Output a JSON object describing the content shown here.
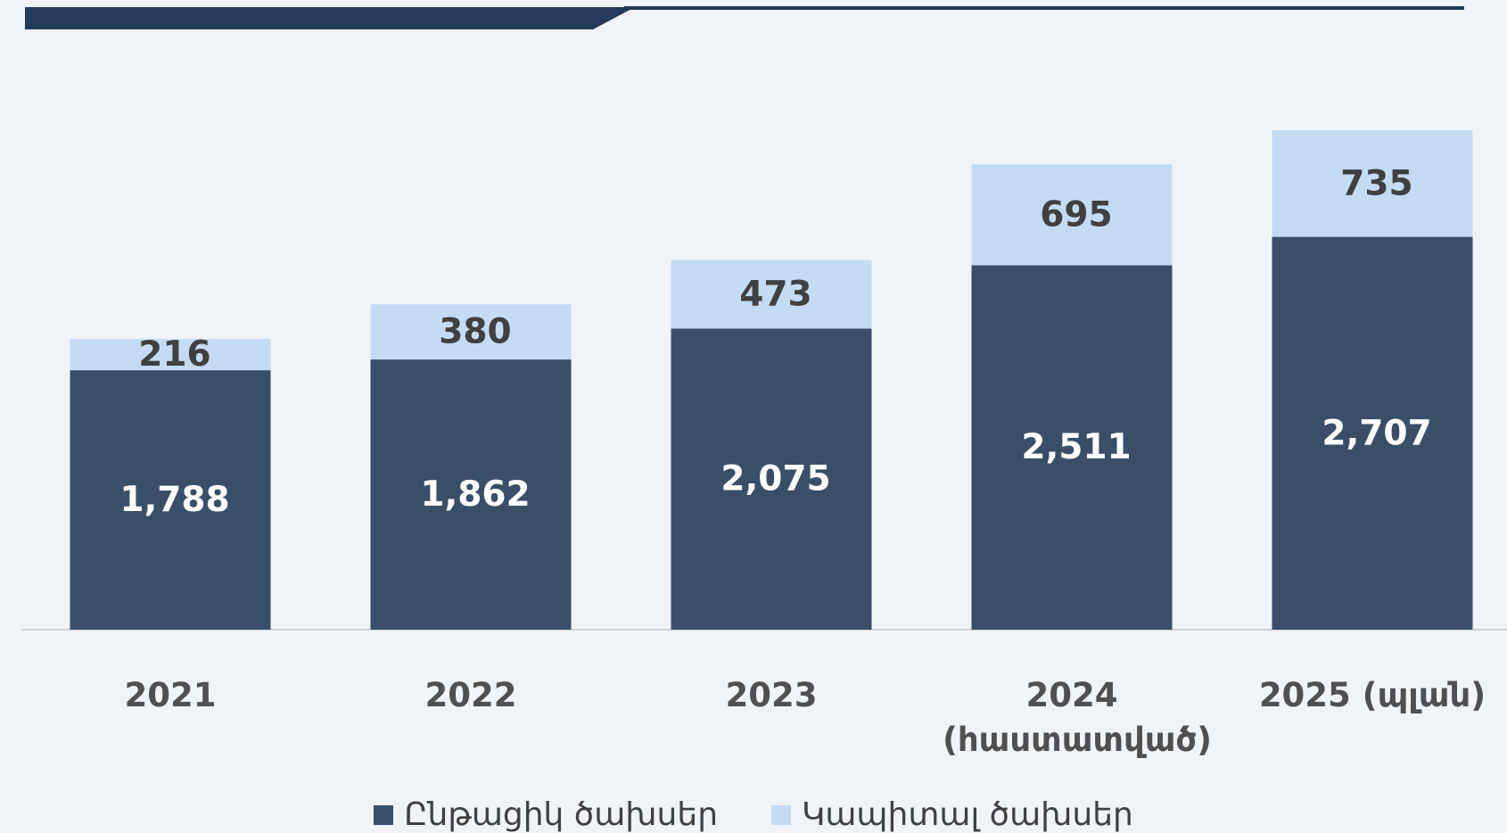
{
  "chart_data": {
    "type": "stacked_bar",
    "categories": [
      "2021",
      "2022",
      "2023",
      "2024 (հաստատված)",
      "2025 (պլան)"
    ],
    "series": [
      {
        "name": "Ընթացիկ ծախսեր",
        "color": "#3a4e67",
        "values": [
          1788,
          1862,
          2075,
          2511,
          2707
        ],
        "value_labels": [
          "1,788",
          "1,862",
          "2,075",
          "2,511",
          "2,707"
        ]
      },
      {
        "name": "Կապիտալ ծախսեր",
        "color": "#c5dbf1",
        "values": [
          216,
          380,
          473,
          695,
          735
        ]
      }
    ]
  }
}
